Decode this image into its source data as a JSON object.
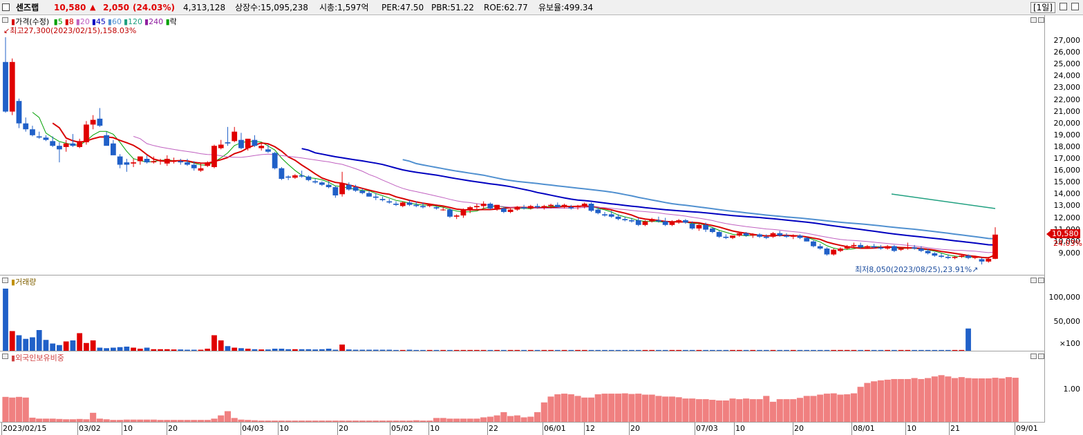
{
  "header": {
    "name": "센즈랩",
    "price": "10,580",
    "change_sign": "▲",
    "change": "2,050",
    "change_pct": "(24.03%)",
    "volume": "4,313,128",
    "shares": "상장수:15,095,238",
    "mcap": "시총:1,597억",
    "per": "PER:47.50",
    "pbr": "PBR:51.22",
    "roe": "ROE:62.77",
    "reserve": "유보율:499.34",
    "period": "[1일]"
  },
  "legend": {
    "price_label": "가격(수정)",
    "ma": [
      "5",
      "8",
      "20",
      "45",
      "60",
      "120",
      "240"
    ],
    "ma_colors": [
      "#00a000",
      "#d80000",
      "#c060c0",
      "#0000c0",
      "#5090d0",
      "#20a080",
      "#9020a0"
    ],
    "drop_label": "락",
    "high_note": "최고27,300(2023/02/15),158.03%",
    "low_note": "최저8,050(2023/08/25),23.91%"
  },
  "price_axis": [
    "27,000",
    "26,000",
    "25,000",
    "24,000",
    "23,000",
    "22,000",
    "21,000",
    "20,000",
    "19,000",
    "18,000",
    "17,000",
    "16,000",
    "15,000",
    "14,000",
    "13,000",
    "12,000",
    "11,000",
    "10,000",
    "9,000"
  ],
  "current_price_tag": "10,580",
  "current_pct_tag": "24.03%",
  "volume_panel": {
    "label": "거래량",
    "axis": [
      "100,000",
      "50,000",
      "×100"
    ]
  },
  "foreign_panel": {
    "label": "외국인보유비중",
    "axis": [
      "1.00"
    ]
  },
  "x_axis": [
    "2023/02/15",
    "03/02",
    "10",
    "20",
    "04/03",
    "10",
    "20",
    "05/02",
    "10",
    "22",
    "06/01",
    "12",
    "20",
    "07/03",
    "10",
    "20",
    "08/01",
    "10",
    "21",
    "09/01"
  ],
  "chart_data": {
    "type": "candlestick",
    "ylim": [
      8000,
      27800
    ],
    "candles": [
      [
        25200,
        27300,
        20900,
        21000
      ],
      [
        21000,
        25500,
        20700,
        25200
      ],
      [
        21900,
        22100,
        19600,
        20000
      ],
      [
        20000,
        20500,
        19300,
        19500
      ],
      [
        19500,
        19800,
        18900,
        19000
      ],
      [
        18900,
        19300,
        18700,
        18800
      ],
      [
        18800,
        19000,
        18500,
        18600
      ],
      [
        18500,
        18900,
        18000,
        18100
      ],
      [
        18100,
        18400,
        16700,
        17800
      ],
      [
        18000,
        18600,
        17600,
        18300
      ],
      [
        18300,
        19100,
        18000,
        18100
      ],
      [
        18000,
        18700,
        17900,
        18500
      ],
      [
        18400,
        20200,
        18200,
        19900
      ],
      [
        19900,
        20700,
        19500,
        20300
      ],
      [
        20400,
        21300,
        19700,
        19800
      ],
      [
        19000,
        19300,
        18200,
        18100
      ],
      [
        18300,
        18600,
        17400,
        17300
      ],
      [
        17200,
        17400,
        16200,
        16500
      ],
      [
        16700,
        17000,
        15900,
        16500
      ],
      [
        16600,
        17000,
        16300,
        16700
      ],
      [
        16800,
        17200,
        16500,
        17200
      ],
      [
        17000,
        17300,
        16600,
        16700
      ],
      [
        16700,
        17200,
        16600,
        16800
      ],
      [
        16800,
        17000,
        16500,
        16900
      ],
      [
        16600,
        17300,
        16400,
        17000
      ],
      [
        16800,
        17100,
        16600,
        16800
      ],
      [
        16800,
        17000,
        16500,
        16700
      ],
      [
        16700,
        17000,
        16400,
        16500
      ],
      [
        16500,
        16800,
        16000,
        16200
      ],
      [
        16000,
        16600,
        15900,
        16200
      ],
      [
        16400,
        16800,
        16300,
        16700
      ],
      [
        16300,
        18200,
        16200,
        18100
      ],
      [
        17900,
        18600,
        17800,
        18200
      ],
      [
        18400,
        19700,
        18100,
        18300
      ],
      [
        18500,
        19700,
        18400,
        19300
      ],
      [
        18600,
        19200,
        17800,
        17900
      ],
      [
        17900,
        18700,
        17700,
        18700
      ],
      [
        18600,
        19000,
        18000,
        18100
      ],
      [
        17900,
        18300,
        17700,
        18100
      ],
      [
        17800,
        18200,
        17500,
        17600
      ],
      [
        17500,
        17600,
        16100,
        16200
      ],
      [
        16200,
        16300,
        15200,
        15300
      ],
      [
        15500,
        15600,
        15200,
        15400
      ],
      [
        15400,
        15700,
        15300,
        15600
      ],
      [
        15600,
        16000,
        15400,
        15500
      ],
      [
        15500,
        15600,
        15100,
        15200
      ],
      [
        15100,
        15300,
        14900,
        15000
      ],
      [
        15000,
        15100,
        14700,
        14800
      ],
      [
        14800,
        15100,
        14500,
        14600
      ],
      [
        14600,
        14700,
        13700,
        13900
      ],
      [
        14000,
        15900,
        13800,
        14900
      ],
      [
        14800,
        15000,
        14300,
        14400
      ],
      [
        14600,
        14800,
        14200,
        14300
      ],
      [
        14300,
        14500,
        14000,
        14100
      ],
      [
        14100,
        14300,
        13800,
        13800
      ],
      [
        13800,
        14100,
        13500,
        13700
      ],
      [
        13600,
        13800,
        13400,
        13500
      ],
      [
        13400,
        13600,
        13200,
        13300
      ],
      [
        13200,
        13400,
        13000,
        13100
      ],
      [
        13000,
        13400,
        12900,
        13300
      ],
      [
        13300,
        13500,
        13000,
        13100
      ],
      [
        13100,
        13400,
        12900,
        13000
      ],
      [
        13000,
        13300,
        12800,
        12900
      ],
      [
        13000,
        13200,
        12900,
        13100
      ],
      [
        12900,
        13000,
        12700,
        12800
      ],
      [
        12700,
        12900,
        12600,
        12700
      ],
      [
        12700,
        12800,
        12000,
        12100
      ],
      [
        12100,
        12300,
        11900,
        12200
      ],
      [
        12200,
        12800,
        12000,
        12700
      ],
      [
        12700,
        13000,
        12400,
        12900
      ],
      [
        12900,
        13200,
        12700,
        13000
      ],
      [
        13000,
        13400,
        12800,
        13200
      ],
      [
        13200,
        13300,
        12700,
        12800
      ],
      [
        12800,
        13100,
        12600,
        13100
      ],
      [
        12800,
        12900,
        12400,
        12500
      ],
      [
        12500,
        12800,
        12400,
        12700
      ],
      [
        12700,
        13000,
        12600,
        12900
      ],
      [
        12900,
        13100,
        12700,
        12800
      ],
      [
        12800,
        13100,
        12700,
        13000
      ],
      [
        13000,
        13200,
        12800,
        12900
      ],
      [
        12900,
        13100,
        12700,
        13000
      ],
      [
        13000,
        13200,
        12800,
        13100
      ],
      [
        13100,
        13300,
        12900,
        12900
      ],
      [
        12900,
        13200,
        12800,
        13100
      ],
      [
        12900,
        13100,
        12700,
        12800
      ],
      [
        12900,
        13100,
        12700,
        13000
      ],
      [
        13000,
        13300,
        12800,
        13200
      ],
      [
        13200,
        13300,
        12500,
        12600
      ],
      [
        12700,
        12900,
        12300,
        12400
      ],
      [
        12300,
        12500,
        12100,
        12200
      ],
      [
        12300,
        12600,
        12000,
        12100
      ],
      [
        12100,
        12300,
        11800,
        11900
      ],
      [
        11900,
        12100,
        11700,
        11800
      ],
      [
        11800,
        12000,
        11600,
        11700
      ],
      [
        11800,
        12000,
        11300,
        11400
      ],
      [
        11400,
        11800,
        11300,
        11700
      ],
      [
        11700,
        12000,
        11600,
        11900
      ],
      [
        11800,
        12100,
        11600,
        11700
      ],
      [
        11700,
        12000,
        11300,
        11400
      ],
      [
        11400,
        11800,
        11300,
        11700
      ],
      [
        11600,
        11900,
        11500,
        11800
      ],
      [
        11800,
        11900,
        11500,
        11600
      ],
      [
        11500,
        11700,
        11000,
        11100
      ],
      [
        11100,
        11500,
        10900,
        11400
      ],
      [
        11400,
        11600,
        10800,
        11000
      ],
      [
        11100,
        11200,
        10700,
        10800
      ],
      [
        10800,
        10900,
        10300,
        10400
      ],
      [
        10400,
        10600,
        10200,
        10300
      ],
      [
        10300,
        10500,
        10200,
        10500
      ],
      [
        10500,
        10800,
        10400,
        10700
      ],
      [
        10700,
        10800,
        10400,
        10500
      ],
      [
        10500,
        10700,
        10300,
        10600
      ],
      [
        10600,
        10700,
        10300,
        10400
      ],
      [
        10400,
        10600,
        10200,
        10300
      ],
      [
        10400,
        10800,
        10300,
        10700
      ],
      [
        10700,
        10900,
        10400,
        10500
      ],
      [
        10500,
        10700,
        10300,
        10400
      ],
      [
        10400,
        10600,
        10200,
        10500
      ],
      [
        10500,
        10600,
        10200,
        10300
      ],
      [
        10300,
        10400,
        10000,
        10000
      ],
      [
        10000,
        10100,
        9500,
        9600
      ],
      [
        9600,
        9800,
        9300,
        9400
      ],
      [
        9400,
        9500,
        8800,
        8900
      ],
      [
        8900,
        9400,
        8800,
        9300
      ],
      [
        9200,
        9500,
        9100,
        9400
      ],
      [
        9400,
        9700,
        9300,
        9600
      ],
      [
        9600,
        9900,
        9500,
        9700
      ],
      [
        9700,
        9900,
        9400,
        9500
      ],
      [
        9500,
        9700,
        9400,
        9600
      ],
      [
        9600,
        9800,
        9400,
        9500
      ],
      [
        9500,
        9700,
        9300,
        9400
      ],
      [
        9400,
        9700,
        9300,
        9600
      ],
      [
        9600,
        9700,
        9100,
        9200
      ],
      [
        9300,
        9500,
        9200,
        9400
      ],
      [
        9400,
        9900,
        9300,
        9500
      ],
      [
        9500,
        9700,
        9300,
        9400
      ],
      [
        9400,
        9600,
        9100,
        9200
      ],
      [
        9200,
        9400,
        8900,
        9000
      ],
      [
        9000,
        9100,
        8700,
        8800
      ],
      [
        8800,
        9000,
        8600,
        8700
      ],
      [
        8700,
        8900,
        8500,
        8600
      ],
      [
        8600,
        8800,
        8500,
        8700
      ],
      [
        8700,
        8900,
        8600,
        8800
      ],
      [
        8800,
        8900,
        8500,
        8600
      ],
      [
        8600,
        8800,
        8500,
        8700
      ],
      [
        8500,
        8600,
        8050,
        8300
      ],
      [
        8300,
        8700,
        8200,
        8530
      ],
      [
        8530,
        11200,
        8500,
        10580
      ]
    ],
    "volume": [
      1200,
      380,
      300,
      230,
      260,
      400,
      210,
      140,
      110,
      180,
      200,
      340,
      150,
      200,
      60,
      50,
      60,
      70,
      80,
      60,
      40,
      60,
      30,
      30,
      30,
      25,
      25,
      20,
      20,
      20,
      40,
      300,
      200,
      90,
      60,
      50,
      40,
      30,
      25,
      25,
      40,
      40,
      30,
      30,
      30,
      30,
      25,
      30,
      40,
      20,
      120,
      25,
      20,
      20,
      20,
      20,
      20,
      20,
      15,
      15,
      20,
      15,
      15,
      15,
      15,
      15,
      15,
      15,
      15,
      15,
      15,
      15,
      15,
      15,
      15,
      15,
      15,
      15,
      15,
      15,
      15,
      15,
      15,
      15,
      15,
      15,
      15,
      15,
      15,
      15,
      15,
      15,
      15,
      15,
      15,
      15,
      15,
      15,
      15,
      15,
      15,
      15,
      15,
      15,
      15,
      15,
      15,
      15,
      15,
      15,
      15,
      15,
      15,
      15,
      15,
      15,
      15,
      15,
      15,
      15,
      15,
      15,
      15,
      15,
      15,
      15,
      15,
      15,
      15,
      15,
      15,
      15,
      15,
      15,
      15,
      15,
      15,
      15,
      15,
      15,
      15,
      15,
      15,
      430
    ],
    "foreign": [
      0.77,
      0.75,
      0.77,
      0.75,
      0.13,
      0.1,
      0.1,
      0.1,
      0.09,
      0.08,
      0.08,
      0.09,
      0.08,
      0.28,
      0.1,
      0.08,
      0.06,
      0.06,
      0.07,
      0.07,
      0.07,
      0.07,
      0.07,
      0.06,
      0.06,
      0.06,
      0.06,
      0.06,
      0.06,
      0.06,
      0.06,
      0.1,
      0.2,
      0.33,
      0.12,
      0.07,
      0.06,
      0.05,
      0.04,
      0.04,
      0.04,
      0.04,
      0.04,
      0.04,
      0.04,
      0.04,
      0.04,
      0.04,
      0.04,
      0.04,
      0.04,
      0.04,
      0.04,
      0.04,
      0.04,
      0.04,
      0.04,
      0.04,
      0.04,
      0.04,
      0.04,
      0.05,
      0.04,
      0.04,
      0.12,
      0.12,
      0.1,
      0.1,
      0.1,
      0.1,
      0.1,
      0.14,
      0.16,
      0.2,
      0.3,
      0.18,
      0.2,
      0.14,
      0.16,
      0.3,
      0.6,
      0.78,
      0.85,
      0.87,
      0.85,
      0.8,
      0.75,
      0.75,
      0.85,
      0.87,
      0.87,
      0.87,
      0.88,
      0.86,
      0.87,
      0.84,
      0.84,
      0.8,
      0.78,
      0.78,
      0.76,
      0.72,
      0.72,
      0.7,
      0.7,
      0.68,
      0.66,
      0.66,
      0.72,
      0.7,
      0.72,
      0.7,
      0.7,
      0.8,
      0.62,
      0.7,
      0.7,
      0.7,
      0.74,
      0.8,
      0.8,
      0.84,
      0.87,
      0.88,
      0.84,
      0.85,
      0.88,
      1.08,
      1.2,
      1.25,
      1.28,
      1.3,
      1.32,
      1.32,
      1.32,
      1.35,
      1.32,
      1.35,
      1.4,
      1.44,
      1.4,
      1.35,
      1.38,
      1.35,
      1.34,
      1.34,
      1.34,
      1.36,
      1.34,
      1.38,
      1.36
    ]
  }
}
